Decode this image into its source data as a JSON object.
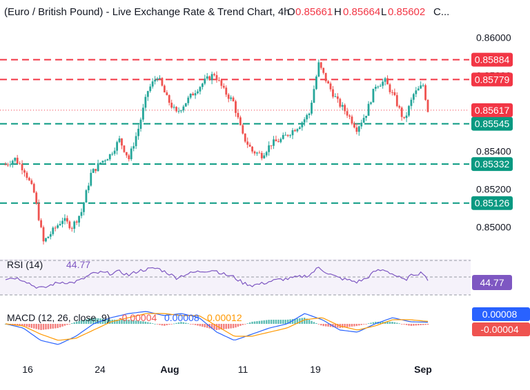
{
  "header": {
    "title": "(Euro / British Pound) - Live Exchange Rate & Trend Chart, 4h",
    "open_label": "O",
    "open": "0.85661",
    "high_label": "H",
    "high": "0.85664",
    "low_label": "L",
    "low": "0.85602",
    "close_label": "C..."
  },
  "colors": {
    "up": "#26a69a",
    "down": "#ef5350",
    "resistance": "#f23645",
    "support": "#089981",
    "rsi": "#7e57c2",
    "macd": "#2962ff",
    "signal": "#ff9800",
    "hist_up": "#26a69a",
    "hist_down": "#ef5350"
  },
  "chart_data": [
    {
      "type": "candlestick",
      "title": "(Euro / British Pound) - Live Exchange Rate & Trend Chart, 4h",
      "x_ticks": [
        "16",
        "24",
        "Aug",
        "11",
        "19",
        "Sep"
      ],
      "y_ticks": [
        "0.86000",
        "0.85800",
        "0.85600",
        "0.85400",
        "0.85200",
        "0.85000"
      ],
      "ylim": [
        0.8487,
        0.8609
      ],
      "last_price": 0.85617,
      "resistance_levels": [
        0.85884,
        0.85779
      ],
      "support_levels": [
        0.85545,
        0.85332,
        0.85126
      ],
      "price_path": [
        {
          "x": 0,
          "y": 0.8533
        },
        {
          "x": 2,
          "y": 0.8536
        },
        {
          "x": 4,
          "y": 0.853
        },
        {
          "x": 6,
          "y": 0.8518
        },
        {
          "x": 8,
          "y": 0.8492
        },
        {
          "x": 10,
          "y": 0.8498
        },
        {
          "x": 12,
          "y": 0.8504
        },
        {
          "x": 14,
          "y": 0.85
        },
        {
          "x": 16,
          "y": 0.8508
        },
        {
          "x": 18,
          "y": 0.8528
        },
        {
          "x": 20,
          "y": 0.8534
        },
        {
          "x": 22,
          "y": 0.8538
        },
        {
          "x": 24,
          "y": 0.8546
        },
        {
          "x": 26,
          "y": 0.8536
        },
        {
          "x": 28,
          "y": 0.8552
        },
        {
          "x": 30,
          "y": 0.8572
        },
        {
          "x": 32,
          "y": 0.858
        },
        {
          "x": 34,
          "y": 0.8568
        },
        {
          "x": 36,
          "y": 0.856
        },
        {
          "x": 38,
          "y": 0.8566
        },
        {
          "x": 40,
          "y": 0.8572
        },
        {
          "x": 42,
          "y": 0.8577
        },
        {
          "x": 44,
          "y": 0.8581
        },
        {
          "x": 46,
          "y": 0.8572
        },
        {
          "x": 48,
          "y": 0.8566
        },
        {
          "x": 50,
          "y": 0.8548
        },
        {
          "x": 52,
          "y": 0.854
        },
        {
          "x": 54,
          "y": 0.8538
        },
        {
          "x": 56,
          "y": 0.8544
        },
        {
          "x": 58,
          "y": 0.8546
        },
        {
          "x": 60,
          "y": 0.855
        },
        {
          "x": 62,
          "y": 0.8554
        },
        {
          "x": 64,
          "y": 0.856
        },
        {
          "x": 66,
          "y": 0.8586
        },
        {
          "x": 68,
          "y": 0.8575
        },
        {
          "x": 70,
          "y": 0.8566
        },
        {
          "x": 72,
          "y": 0.856
        },
        {
          "x": 74,
          "y": 0.8552
        },
        {
          "x": 76,
          "y": 0.856
        },
        {
          "x": 78,
          "y": 0.8575
        },
        {
          "x": 80,
          "y": 0.8577
        },
        {
          "x": 82,
          "y": 0.8568
        },
        {
          "x": 84,
          "y": 0.8556
        },
        {
          "x": 86,
          "y": 0.857
        },
        {
          "x": 88,
          "y": 0.8575
        },
        {
          "x": 89,
          "y": 0.85617
        }
      ]
    },
    {
      "type": "line",
      "title": "RSI (14)",
      "value": "44.77",
      "ylim": [
        0,
        100
      ],
      "bands": [
        70,
        50,
        30
      ],
      "price_path": [
        {
          "x": 0,
          "y": 48
        },
        {
          "x": 2,
          "y": 50
        },
        {
          "x": 4,
          "y": 44
        },
        {
          "x": 6,
          "y": 30
        },
        {
          "x": 8,
          "y": 25
        },
        {
          "x": 10,
          "y": 35
        },
        {
          "x": 12,
          "y": 40
        },
        {
          "x": 14,
          "y": 38
        },
        {
          "x": 16,
          "y": 45
        },
        {
          "x": 18,
          "y": 58
        },
        {
          "x": 20,
          "y": 62
        },
        {
          "x": 22,
          "y": 60
        },
        {
          "x": 24,
          "y": 64
        },
        {
          "x": 26,
          "y": 56
        },
        {
          "x": 28,
          "y": 66
        },
        {
          "x": 30,
          "y": 70
        },
        {
          "x": 32,
          "y": 72
        },
        {
          "x": 34,
          "y": 62
        },
        {
          "x": 36,
          "y": 50
        },
        {
          "x": 38,
          "y": 58
        },
        {
          "x": 40,
          "y": 63
        },
        {
          "x": 42,
          "y": 66
        },
        {
          "x": 44,
          "y": 68
        },
        {
          "x": 46,
          "y": 58
        },
        {
          "x": 48,
          "y": 52
        },
        {
          "x": 50,
          "y": 38
        },
        {
          "x": 52,
          "y": 32
        },
        {
          "x": 54,
          "y": 36
        },
        {
          "x": 56,
          "y": 42
        },
        {
          "x": 58,
          "y": 46
        },
        {
          "x": 60,
          "y": 48
        },
        {
          "x": 62,
          "y": 52
        },
        {
          "x": 64,
          "y": 56
        },
        {
          "x": 66,
          "y": 74
        },
        {
          "x": 68,
          "y": 60
        },
        {
          "x": 70,
          "y": 50
        },
        {
          "x": 72,
          "y": 45
        },
        {
          "x": 74,
          "y": 40
        },
        {
          "x": 76,
          "y": 48
        },
        {
          "x": 78,
          "y": 66
        },
        {
          "x": 80,
          "y": 68
        },
        {
          "x": 82,
          "y": 56
        },
        {
          "x": 84,
          "y": 44
        },
        {
          "x": 86,
          "y": 58
        },
        {
          "x": 88,
          "y": 62
        },
        {
          "x": 89,
          "y": 44.77
        }
      ]
    },
    {
      "type": "line",
      "title": "MACD",
      "params": "(12, 26, close, 9)",
      "histogram_value": "-0.00004",
      "macd_value": "0.00008",
      "signal_value": "0.00012",
      "ylim": [
        -0.0012,
        0.0008
      ],
      "series": [
        {
          "name": "MACD",
          "values": [
            0.0,
            -0.0002,
            -0.0008,
            -0.001,
            -0.0006,
            0.0,
            0.0003,
            0.0005,
            0.0006,
            0.0004,
            0.0005,
            0.0003,
            -0.0004,
            -0.0008,
            -0.0005,
            -0.0002,
            0.0,
            0.0005,
            0.0002,
            -0.0003,
            -0.0004,
            0.0,
            0.0003,
            0.0001,
            8e-05
          ]
        },
        {
          "name": "Signal",
          "values": [
            0.0,
            -0.0001,
            -0.0005,
            -0.0008,
            -0.0007,
            -0.0003,
            0.0001,
            0.0003,
            0.0005,
            0.0005,
            0.0004,
            0.0004,
            -0.0001,
            -0.0006,
            -0.0006,
            -0.0004,
            -0.0002,
            0.0002,
            0.0003,
            -0.0001,
            -0.0003,
            -0.0001,
            0.0002,
            0.0002,
            0.00012
          ]
        }
      ]
    }
  ]
}
